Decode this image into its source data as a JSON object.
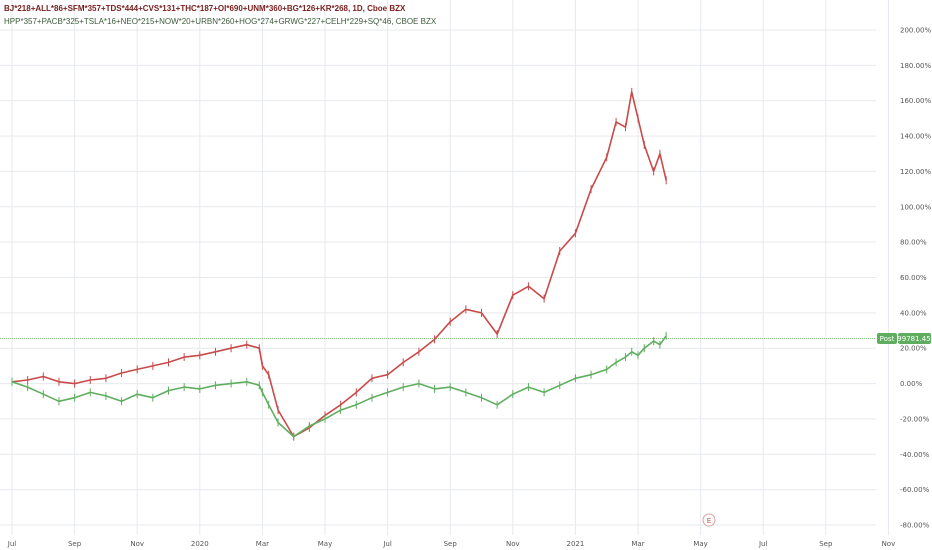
{
  "header": {
    "series1_title": "BJ*218+ALL*86+SFM*357+TDS*444+CVS*131+THC*187+OI*690+UNM*360+BG*126+KR*268, 1D, Cboe BZX",
    "series2_title": "HPP*357+PACB*325+TSLA*16+NEO*215+NOW*20+URBN*260+HOG*274+GRWG*227+CELH*229+SQ*46, CBOE BZX"
  },
  "price_tag": {
    "label": "Post",
    "value": "99781.45"
  },
  "event_marker": "E",
  "colors": {
    "series1": "#c94a4a",
    "series2": "#5fae5f",
    "tag_bg": "#5fae5f",
    "grid": "#e6e9ee"
  },
  "chart_data": {
    "type": "line",
    "y_axis": {
      "unit": "%",
      "ylim": [
        -80,
        200
      ],
      "ticks": [
        200,
        180,
        160,
        140,
        120,
        100,
        80,
        60,
        40,
        20,
        0,
        -20,
        -40,
        -60,
        -80
      ],
      "tick_labels": [
        "200.00%",
        "180.00%",
        "160.00%",
        "140.00%",
        "120.00%",
        "100.00%",
        "80.00%",
        "60.00%",
        "40.00%",
        "20.00%",
        "0.00%",
        "-20.00%",
        "-40.00%",
        "-60.00%",
        "-80.00%"
      ]
    },
    "x_axis": {
      "tick_labels": [
        "Jul",
        "Sep",
        "Nov",
        "2020",
        "Mar",
        "May",
        "Jul",
        "Sep",
        "Nov",
        "2021",
        "Mar",
        "May",
        "Jul",
        "Sep",
        "Nov"
      ],
      "tick_months": [
        0,
        2,
        4,
        6,
        8,
        10,
        12,
        14,
        16,
        18,
        20,
        22,
        24,
        26,
        28
      ]
    },
    "grid": true,
    "series": [
      {
        "x": [
          0,
          0.5,
          1,
          1.5,
          2,
          2.5,
          3,
          3.5,
          4,
          4.5,
          5,
          5.5,
          6,
          6.5,
          7,
          7.5,
          7.9,
          8,
          8.2,
          8.5,
          9,
          9.5,
          10,
          10.5,
          11,
          11.5,
          12,
          12.5,
          13,
          13.5,
          14,
          14.5,
          15,
          15.5,
          16,
          16.5,
          17,
          17.5,
          18,
          18.5,
          19,
          19.3,
          19.6,
          19.8,
          20,
          20.2,
          20.5,
          20.7,
          20.9
        ],
        "values": [
          1,
          2,
          4,
          1,
          0,
          2,
          3,
          6,
          8,
          10,
          12,
          15,
          16,
          18,
          20,
          22,
          20,
          10,
          5,
          -15,
          -30,
          -25,
          -18,
          -12,
          -5,
          3,
          5,
          12,
          18,
          25,
          35,
          42,
          40,
          28,
          50,
          55,
          48,
          75,
          85,
          110,
          128,
          148,
          145,
          165,
          150,
          135,
          120,
          130,
          115
        ]
      },
      {
        "x": [
          0,
          0.5,
          1,
          1.5,
          2,
          2.5,
          3,
          3.5,
          4,
          4.5,
          5,
          5.5,
          6,
          6.5,
          7,
          7.5,
          7.9,
          8,
          8.2,
          8.5,
          9,
          9.5,
          10,
          10.5,
          11,
          11.5,
          12,
          12.5,
          13,
          13.5,
          14,
          14.5,
          15,
          15.5,
          16,
          16.5,
          17,
          17.5,
          18,
          18.5,
          19,
          19.3,
          19.6,
          19.8,
          20,
          20.2,
          20.5,
          20.7,
          20.9
        ],
        "values": [
          1,
          -2,
          -6,
          -10,
          -8,
          -5,
          -7,
          -10,
          -6,
          -8,
          -4,
          -2,
          -3,
          -1,
          0,
          1,
          -1,
          -5,
          -12,
          -22,
          -30,
          -24,
          -20,
          -15,
          -12,
          -8,
          -5,
          -2,
          0,
          -3,
          -2,
          -5,
          -8,
          -12,
          -6,
          -2,
          -5,
          -1,
          3,
          5,
          8,
          12,
          15,
          18,
          16,
          20,
          24,
          22,
          27
        ]
      }
    ]
  }
}
